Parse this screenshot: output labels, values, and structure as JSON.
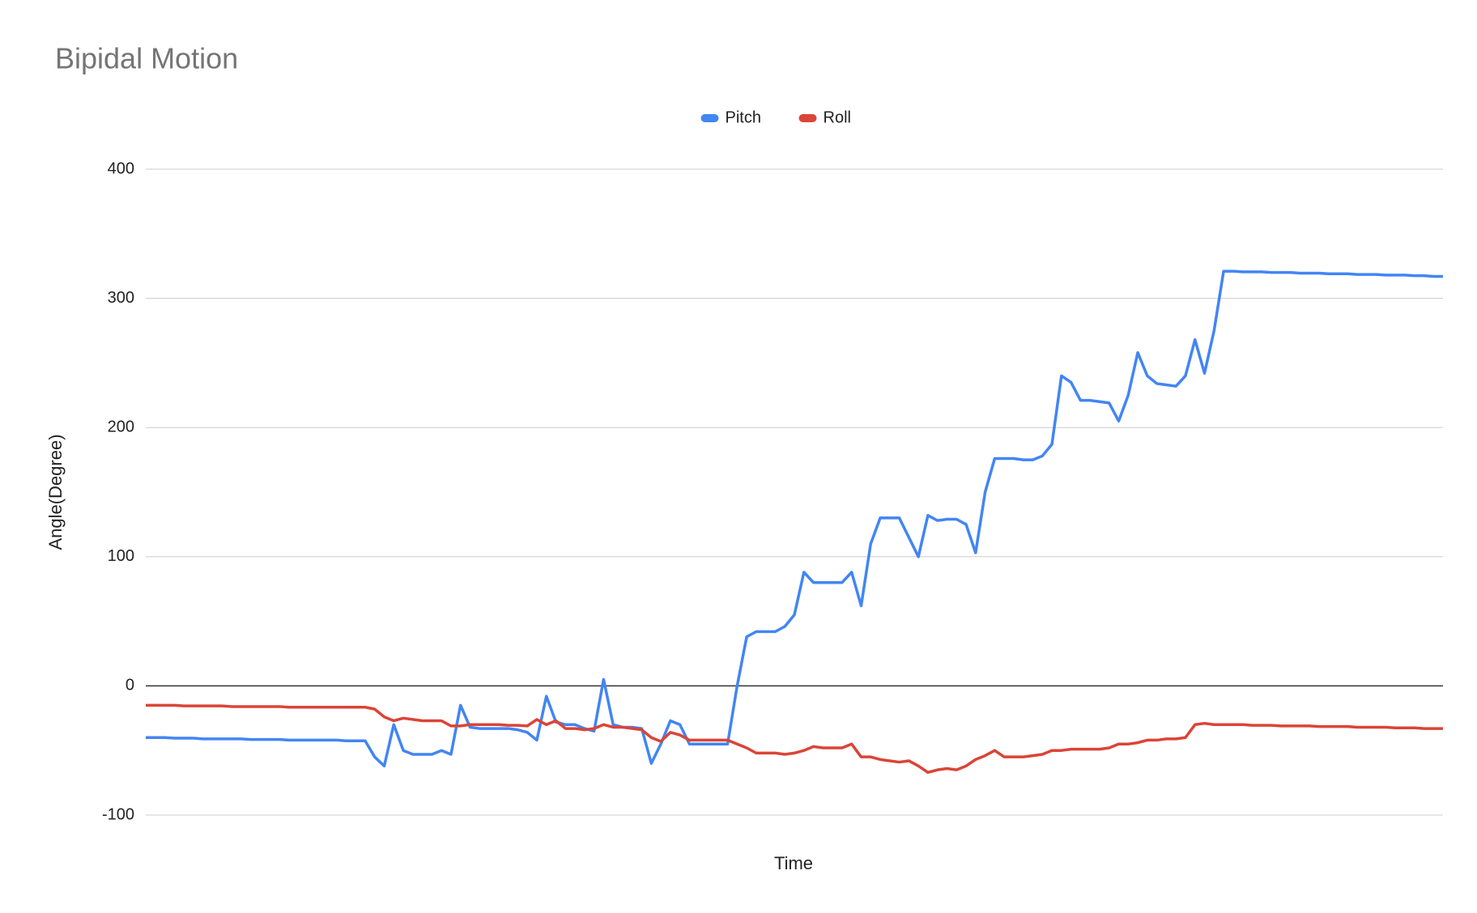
{
  "chart_data": {
    "type": "line",
    "title": "Bipidal Motion",
    "x_label": "Time",
    "y_label": "Angle(Degree)",
    "ylim": [
      -100,
      400
    ],
    "yticks": [
      -100,
      0,
      100,
      200,
      300,
      400
    ],
    "grid": true,
    "legend": "top",
    "series": [
      {
        "name": "Pitch",
        "color": "#4285f4",
        "values": [
          -40,
          -40,
          -40,
          -40.5,
          -40.5,
          -40.5,
          -41,
          -41,
          -41,
          -41,
          -41,
          -41.5,
          -41.5,
          -41.5,
          -41.5,
          -42,
          -42,
          -42,
          -42,
          -42,
          -42,
          -42.5,
          -42.5,
          -42.5,
          -55,
          -62,
          -30,
          -50,
          -53,
          -53,
          -53,
          -50,
          -53,
          -15,
          -32,
          -33,
          -33,
          -33,
          -33,
          -34,
          -36,
          -42,
          -8,
          -28,
          -30,
          -30,
          -33,
          -35,
          5,
          -30,
          -32,
          -32,
          -33,
          -60,
          -45,
          -27,
          -30,
          -45,
          -45,
          -45,
          -45,
          -45,
          0,
          38,
          42,
          42,
          42,
          46,
          55,
          88,
          80,
          80,
          80,
          80,
          88,
          62,
          110,
          130,
          130,
          130,
          115,
          100,
          132,
          128,
          129,
          129,
          125,
          103,
          150,
          176,
          176,
          176,
          175,
          175,
          178,
          187,
          240,
          235,
          221,
          221,
          220,
          219,
          205,
          225,
          258,
          240,
          234,
          233,
          232,
          240,
          268,
          242,
          275,
          321,
          321,
          320.5,
          320.5,
          320.5,
          320,
          320,
          320,
          319.5,
          319.5,
          319.5,
          319,
          319,
          319,
          318.5,
          318.5,
          318.5,
          318,
          318,
          318,
          317.5,
          317.5,
          317,
          317
        ]
      },
      {
        "name": "Roll",
        "color": "#db4437",
        "values": [
          -15,
          -15,
          -15,
          -15,
          -15.5,
          -15.5,
          -15.5,
          -15.5,
          -15.5,
          -16,
          -16,
          -16,
          -16,
          -16,
          -16,
          -16.5,
          -16.5,
          -16.5,
          -16.5,
          -16.5,
          -16.5,
          -16.5,
          -16.5,
          -16.5,
          -18,
          -24,
          -27,
          -25,
          -26,
          -27,
          -27,
          -27,
          -31,
          -31,
          -30,
          -30,
          -30,
          -30,
          -30.5,
          -30.5,
          -31,
          -26,
          -30,
          -27,
          -33,
          -33,
          -34,
          -33,
          -30,
          -32,
          -32,
          -33,
          -34,
          -40,
          -43,
          -36,
          -38,
          -42,
          -42,
          -42,
          -42,
          -42,
          -45,
          -48,
          -52,
          -52,
          -52,
          -53,
          -52,
          -50,
          -47,
          -48,
          -48,
          -48,
          -45,
          -55,
          -55,
          -57,
          -58,
          -59,
          -58,
          -62,
          -67,
          -65,
          -64,
          -65,
          -62,
          -57,
          -54,
          -50,
          -55,
          -55,
          -55,
          -54,
          -53,
          -50,
          -50,
          -49,
          -49,
          -49,
          -49,
          -48,
          -45,
          -45,
          -44,
          -42,
          -42,
          -41,
          -41,
          -40,
          -30,
          -29,
          -30,
          -30,
          -30,
          -30,
          -30.5,
          -30.5,
          -30.5,
          -31,
          -31,
          -31,
          -31,
          -31.5,
          -31.5,
          -31.5,
          -31.5,
          -32,
          -32,
          -32,
          -32,
          -32.5,
          -32.5,
          -32.5,
          -33,
          -33,
          -33
        ]
      }
    ]
  }
}
